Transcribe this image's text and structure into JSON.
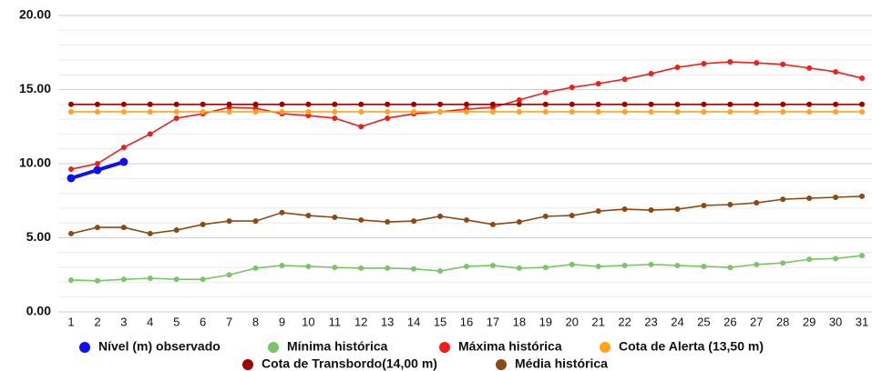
{
  "chart_data": {
    "type": "line",
    "categories": [
      1,
      2,
      3,
      4,
      5,
      6,
      7,
      8,
      9,
      10,
      11,
      12,
      13,
      14,
      15,
      16,
      17,
      18,
      19,
      20,
      21,
      22,
      23,
      24,
      25,
      26,
      27,
      28,
      29,
      30,
      31
    ],
    "ylim": [
      0,
      20
    ],
    "yticks": [
      {
        "value": 0,
        "label": "0.00"
      },
      {
        "value": 5,
        "label": "5.00"
      },
      {
        "value": 10,
        "label": "10.00"
      },
      {
        "value": 15,
        "label": "15.00"
      },
      {
        "value": 20,
        "label": "20.00"
      }
    ],
    "minor_yticks": [
      1,
      2,
      3,
      4,
      6,
      7,
      8,
      9,
      11,
      12,
      13,
      14,
      16,
      17,
      18,
      19
    ],
    "grid": true,
    "legend": "bottom",
    "series": [
      {
        "name": "Nível (m) observado",
        "color": "#1010f0",
        "values": [
          9.02,
          9.57,
          10.12,
          null,
          null,
          null,
          null,
          null,
          null,
          null,
          null,
          null,
          null,
          null,
          null,
          null,
          null,
          null,
          null,
          null,
          null,
          null,
          null,
          null,
          null,
          null,
          null,
          null,
          null,
          null,
          null
        ]
      },
      {
        "name": "Mínima histórica",
        "color": "#7cc36a",
        "values": [
          2.15,
          2.1,
          2.2,
          2.27,
          2.2,
          2.2,
          2.5,
          2.95,
          3.13,
          3.07,
          3.0,
          2.95,
          2.95,
          2.9,
          2.76,
          3.07,
          3.13,
          2.95,
          3.0,
          3.2,
          3.07,
          3.13,
          3.2,
          3.13,
          3.07,
          3.0,
          3.2,
          3.3,
          3.55,
          3.6,
          3.8
        ]
      },
      {
        "name": "Máxima histórica",
        "color": "#f21d1d",
        "values": [
          9.63,
          10.0,
          11.1,
          12.0,
          13.07,
          13.37,
          13.8,
          13.74,
          13.37,
          13.25,
          13.07,
          12.5,
          13.07,
          13.37,
          13.5,
          13.68,
          13.8,
          14.3,
          14.8,
          15.15,
          15.4,
          15.7,
          16.07,
          16.5,
          16.75,
          16.87,
          16.8,
          16.7,
          16.45,
          16.2,
          15.77
        ]
      },
      {
        "name": "Cota de Alerta (13,50 m)",
        "color": "#ffa31a",
        "values": [
          13.5,
          13.5,
          13.5,
          13.5,
          13.5,
          13.5,
          13.5,
          13.5,
          13.5,
          13.5,
          13.5,
          13.5,
          13.5,
          13.5,
          13.5,
          13.5,
          13.5,
          13.5,
          13.5,
          13.5,
          13.5,
          13.5,
          13.5,
          13.5,
          13.5,
          13.5,
          13.5,
          13.5,
          13.5,
          13.5,
          13.5
        ]
      },
      {
        "name": "Cota de Transbordo(14,00 m)",
        "color": "#a00000",
        "values": [
          14,
          14,
          14,
          14,
          14,
          14,
          14,
          14,
          14,
          14,
          14,
          14,
          14,
          14,
          14,
          14,
          14,
          14,
          14,
          14,
          14,
          14,
          14,
          14,
          14,
          14,
          14,
          14,
          14,
          14,
          14
        ]
      },
      {
        "name": "Média histórica",
        "color": "#8b4a14",
        "values": [
          5.28,
          5.7,
          5.7,
          5.28,
          5.52,
          5.9,
          6.13,
          6.13,
          6.7,
          6.5,
          6.38,
          6.2,
          6.07,
          6.13,
          6.45,
          6.2,
          5.9,
          6.07,
          6.45,
          6.5,
          6.8,
          6.93,
          6.87,
          6.93,
          7.18,
          7.24,
          7.36,
          7.6,
          7.67,
          7.73,
          7.8
        ]
      }
    ]
  }
}
